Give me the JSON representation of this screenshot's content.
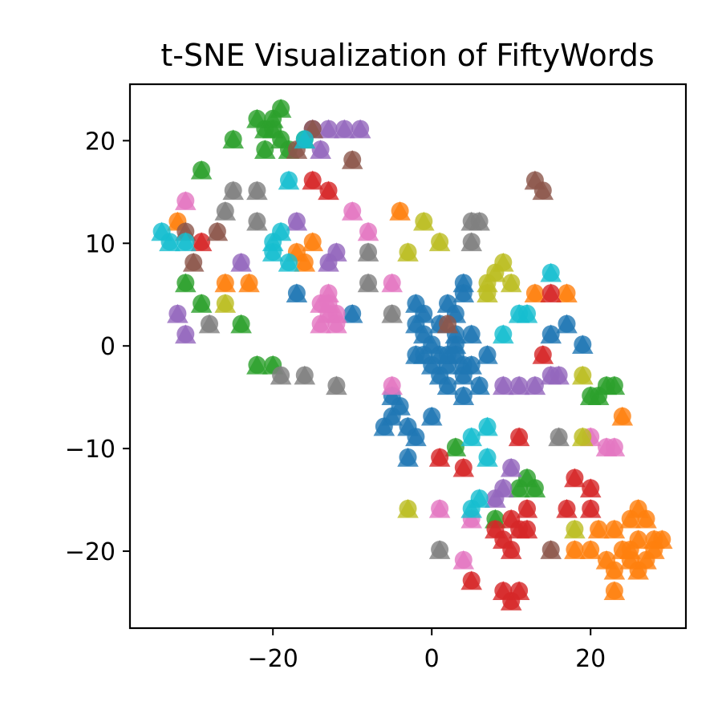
{
  "chart_data": {
    "type": "scatter",
    "title": "t-SNE Visualization of FiftyWords",
    "xlabel": "",
    "ylabel": "",
    "xlim": [
      -38,
      32
    ],
    "ylim": [
      -27.5,
      25.5
    ],
    "xticks": [
      -20,
      0,
      20
    ],
    "yticks": [
      -20,
      -10,
      0,
      10,
      20
    ],
    "xtick_labels": [
      "−20",
      "0",
      "20"
    ],
    "ytick_labels": [
      "−20",
      "−10",
      "0",
      "10",
      "20"
    ],
    "grid": false,
    "legend": "none",
    "marker_styles": [
      "circle",
      "triangle"
    ],
    "series": [
      {
        "color": "#1f77b4",
        "points": [
          [
            -2,
            -1
          ],
          [
            -1,
            1
          ],
          [
            0,
            0
          ],
          [
            1,
            2
          ],
          [
            2,
            -1
          ],
          [
            3,
            0
          ],
          [
            4,
            -2
          ],
          [
            2,
            -4
          ],
          [
            1,
            -3
          ],
          [
            0,
            -2
          ],
          [
            -1,
            -1
          ],
          [
            3,
            1
          ],
          [
            4,
            -3
          ],
          [
            5,
            1
          ],
          [
            3,
            3
          ],
          [
            4,
            5
          ],
          [
            2,
            4
          ],
          [
            -2,
            4
          ],
          [
            5,
            -2
          ],
          [
            6,
            -4
          ],
          [
            -1,
            3
          ],
          [
            -2,
            2
          ],
          [
            -4,
            -6
          ],
          [
            -3,
            -8
          ],
          [
            -5,
            -7
          ],
          [
            -6,
            -8
          ],
          [
            -2,
            -9
          ],
          [
            -3,
            -11
          ],
          [
            0,
            -7
          ],
          [
            -5,
            -5
          ],
          [
            4,
            -5
          ],
          [
            2,
            -2
          ],
          [
            7,
            -1
          ],
          [
            3,
            -1
          ],
          [
            1,
            -1
          ],
          [
            15,
            1
          ],
          [
            17,
            2
          ],
          [
            19,
            0
          ],
          [
            4,
            6
          ],
          [
            -17,
            5
          ],
          [
            -10,
            3
          ]
        ]
      },
      {
        "color": "#ff7f0e",
        "points": [
          [
            -32,
            12
          ],
          [
            -26,
            6
          ],
          [
            -23,
            6
          ],
          [
            -17,
            9
          ],
          [
            -15,
            10
          ],
          [
            -16,
            8
          ],
          [
            -4,
            13
          ],
          [
            13,
            5
          ],
          [
            17,
            5
          ],
          [
            24,
            -7
          ],
          [
            21,
            -18
          ],
          [
            23,
            -18
          ],
          [
            25,
            -17
          ],
          [
            26,
            -16
          ],
          [
            27,
            -17
          ],
          [
            28,
            -19
          ],
          [
            29,
            -19
          ],
          [
            26,
            -19
          ],
          [
            24,
            -20
          ],
          [
            25,
            -21
          ],
          [
            27,
            -21
          ],
          [
            28,
            -20
          ],
          [
            26,
            -22
          ],
          [
            23,
            -22
          ],
          [
            22,
            -21
          ],
          [
            20,
            -20
          ],
          [
            18,
            -20
          ],
          [
            23,
            -24
          ],
          [
            25,
            -20
          ]
        ]
      },
      {
        "color": "#2ca02c",
        "points": [
          [
            -22,
            22
          ],
          [
            -21,
            21
          ],
          [
            -20,
            22
          ],
          [
            -19,
            23
          ],
          [
            -21,
            19
          ],
          [
            -19,
            20
          ],
          [
            -20,
            21
          ],
          [
            -18,
            19
          ],
          [
            -16,
            20
          ],
          [
            -25,
            20
          ],
          [
            -29,
            17
          ],
          [
            -31,
            6
          ],
          [
            -29,
            4
          ],
          [
            -24,
            2
          ],
          [
            -22,
            -2
          ],
          [
            -20,
            -2
          ],
          [
            3,
            -10
          ],
          [
            11,
            -14
          ],
          [
            12,
            -13
          ],
          [
            13,
            -14
          ],
          [
            8,
            -17
          ],
          [
            20,
            -5
          ],
          [
            21,
            -5
          ],
          [
            22,
            -4
          ],
          [
            23,
            -4
          ]
        ]
      },
      {
        "color": "#d62728",
        "points": [
          [
            -29,
            10
          ],
          [
            -15,
            16
          ],
          [
            -13,
            15
          ],
          [
            15,
            5
          ],
          [
            14,
            -1
          ],
          [
            11,
            -9
          ],
          [
            1,
            -11
          ],
          [
            4,
            -12
          ],
          [
            10,
            -17
          ],
          [
            12,
            -16
          ],
          [
            11,
            -18
          ],
          [
            8,
            -18
          ],
          [
            9,
            -19
          ],
          [
            12,
            -18
          ],
          [
            10,
            -20
          ],
          [
            5,
            -23
          ],
          [
            9,
            -24
          ],
          [
            11,
            -24
          ],
          [
            10,
            -25
          ],
          [
            18,
            -13
          ],
          [
            20,
            -14
          ],
          [
            17,
            -16
          ],
          [
            20,
            -16
          ]
        ]
      },
      {
        "color": "#9467bd",
        "points": [
          [
            -15,
            21
          ],
          [
            -13,
            21
          ],
          [
            -11,
            21
          ],
          [
            -9,
            21
          ],
          [
            -14,
            19
          ],
          [
            -17,
            12
          ],
          [
            -24,
            8
          ],
          [
            -13,
            8
          ],
          [
            -12,
            9
          ],
          [
            -32,
            3
          ],
          [
            -31,
            1
          ],
          [
            9,
            -4
          ],
          [
            11,
            -4
          ],
          [
            13,
            -4
          ],
          [
            15,
            -3
          ],
          [
            16,
            -3
          ],
          [
            10,
            -12
          ],
          [
            8,
            -15
          ],
          [
            9,
            -14
          ]
        ]
      },
      {
        "color": "#8c564b",
        "points": [
          [
            -15,
            21
          ],
          [
            -17,
            19
          ],
          [
            -10,
            18
          ],
          [
            -27,
            11
          ],
          [
            -31,
            11
          ],
          [
            -30,
            8
          ],
          [
            2,
            2
          ],
          [
            13,
            16
          ],
          [
            14,
            15
          ],
          [
            15,
            -20
          ]
        ]
      },
      {
        "color": "#e377c2",
        "points": [
          [
            -31,
            14
          ],
          [
            -13,
            5
          ],
          [
            -14,
            4
          ],
          [
            -12,
            3
          ],
          [
            -14,
            2
          ],
          [
            -13,
            3
          ],
          [
            -12,
            2
          ],
          [
            -13,
            4
          ],
          [
            -10,
            13
          ],
          [
            -8,
            11
          ],
          [
            -5,
            6
          ],
          [
            -5,
            -4
          ],
          [
            1,
            -16
          ],
          [
            5,
            -17
          ],
          [
            4,
            -21
          ],
          [
            20,
            -9
          ],
          [
            22,
            -10
          ],
          [
            23,
            -10
          ]
        ]
      },
      {
        "color": "#7f7f7f",
        "points": [
          [
            -25,
            15
          ],
          [
            -22,
            15
          ],
          [
            -26,
            13
          ],
          [
            -22,
            12
          ],
          [
            -28,
            2
          ],
          [
            -8,
            9
          ],
          [
            -8,
            6
          ],
          [
            -5,
            3
          ],
          [
            5,
            12
          ],
          [
            6,
            12
          ],
          [
            5,
            10
          ],
          [
            -19,
            -3
          ],
          [
            -16,
            -3
          ],
          [
            -12,
            -4
          ],
          [
            16,
            -9
          ],
          [
            1,
            -20
          ]
        ]
      },
      {
        "color": "#bcbd22",
        "points": [
          [
            -26,
            4
          ],
          [
            -3,
            9
          ],
          [
            -1,
            12
          ],
          [
            1,
            10
          ],
          [
            7,
            6
          ],
          [
            8,
            7
          ],
          [
            9,
            8
          ],
          [
            10,
            6
          ],
          [
            7,
            5
          ],
          [
            -3,
            -16
          ],
          [
            19,
            -3
          ],
          [
            19,
            -9
          ],
          [
            18,
            -18
          ]
        ]
      },
      {
        "color": "#17becf",
        "points": [
          [
            -34,
            11
          ],
          [
            -33,
            10
          ],
          [
            -31,
            10
          ],
          [
            -20,
            10
          ],
          [
            -19,
            11
          ],
          [
            -18,
            8
          ],
          [
            -20,
            9
          ],
          [
            -18,
            16
          ],
          [
            -16,
            20
          ],
          [
            15,
            7
          ],
          [
            9,
            1
          ],
          [
            11,
            3
          ],
          [
            12,
            3
          ],
          [
            5,
            -9
          ],
          [
            7,
            -8
          ],
          [
            7,
            -11
          ],
          [
            6,
            -15
          ],
          [
            5,
            -16
          ]
        ]
      }
    ]
  }
}
